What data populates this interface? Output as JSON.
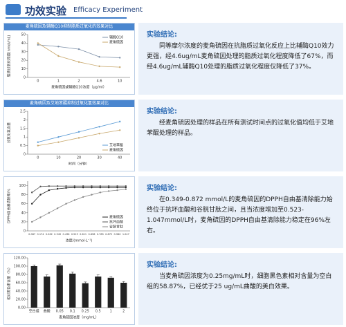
{
  "header": {
    "title": "功效实验",
    "subtitle": "Efficacy Experiment"
  },
  "sections": [
    {
      "heading": "实验结论:",
      "text": "同等摩尔浓度的麦角硫因在抗脂质过氧化反应上比辅酶Q10效力更强，经4.6ug/mL麦角硫因处理的脂质过氧化程度降低了67%，而经4.6ug/mL辅酶Q10处理的脂质过氧化程度仅降低了37%。"
    },
    {
      "heading": "实验结论:",
      "text": "经麦角硫因处理的样品在所有测试时间点的过氧化值均低于艾地苯醌处理的样品。"
    },
    {
      "heading": "实验结论:",
      "text": "在0.349-0.872 mmol/L的麦角硫因的DPPH自由基清除能力始终位于抗坏血酸和谷胱甘肽之间，且当浓度增加至0.523-1.047mmol/L时，麦角硫因的DPPH自由基清除能力稳定在96%左右。"
    },
    {
      "heading": "实验结论:",
      "text": "当麦角硫因浓度为0.25mg/mL时，细胞黑色素相对含量为空白组的58.87%，已经优于25 ug/mL曲酸的美白效果。"
    }
  ],
  "chart_data": [
    {
      "type": "line",
      "title": "麦角硫因及辅酶Q10抑制脂质过氧化的效果对比",
      "x_label": "麦角硫因或辅酶Q10浓度（μg/ml）",
      "y_label": "脂质过氧化程度(nmol/mL)",
      "categories": [
        "0",
        "1",
        "2",
        "4.6",
        "10"
      ],
      "ylim": [
        0,
        50
      ],
      "yticks": [
        0,
        10,
        20,
        30,
        40,
        50
      ],
      "legend": "upper right",
      "series": [
        {
          "name": "辅酶Q10",
          "color": "#7d90a8",
          "values": [
            38,
            36,
            33,
            24,
            23
          ]
        },
        {
          "name": "麦角硫因",
          "color": "#c9a96e",
          "values": [
            40,
            25,
            18,
            13,
            12
          ]
        }
      ]
    },
    {
      "type": "line",
      "title": "麦角硫因及艾地苯醌抑制过氧化氢效果对比",
      "x_label": "时间（分钟）",
      "y_label": "过氧化氢含量",
      "categories": [
        "0",
        "10",
        "20",
        "30",
        "40"
      ],
      "ylim": [
        0,
        2.5
      ],
      "yticks": [
        0,
        0.5,
        1,
        1.5,
        2,
        2.5
      ],
      "legend": "lower right",
      "series": [
        {
          "name": "艾地苯醌",
          "color": "#5b9bd5",
          "values": [
            0.7,
            1.0,
            1.3,
            1.6,
            1.9
          ]
        },
        {
          "name": "麦角硫因",
          "color": "#c9a96e",
          "values": [
            0.5,
            0.7,
            0.95,
            1.2,
            1.4
          ]
        }
      ]
    },
    {
      "type": "line",
      "title": "",
      "x_label": "浓度/(mmol·L⁻¹)",
      "y_label": "DPPH自由基清除率/%",
      "categories": [
        "0.087",
        "0.174",
        "0.262",
        "0.349",
        "0.436",
        "0.523",
        "0.611",
        "0.698",
        "0.785",
        "0.872",
        "0.960",
        "1.047"
      ],
      "ylim": [
        0,
        110
      ],
      "yticks": [
        0,
        20,
        40,
        60,
        80,
        100
      ],
      "legend": "lower right",
      "series": [
        {
          "name": "麦角硫因",
          "color": "#222222",
          "values": [
            60,
            80,
            90,
            93,
            95,
            96,
            96,
            96,
            96,
            96,
            96,
            96
          ]
        },
        {
          "name": "抗坏血酸",
          "color": "#555555",
          "values": [
            85,
            98,
            99,
            99,
            99,
            99,
            99,
            99,
            99,
            99,
            99,
            99
          ]
        },
        {
          "name": "谷胱甘肽",
          "color": "#888888",
          "values": [
            20,
            30,
            40,
            50,
            60,
            68,
            75,
            80,
            85,
            88,
            90,
            92
          ]
        }
      ]
    },
    {
      "type": "bar",
      "title": "",
      "x_label": "麦角硫因浓度（mg/mL）",
      "y_label": "相对黑色素含量（%）",
      "color": "#222222",
      "categories": [
        "空白组",
        "曲酸",
        "0.05",
        "0.1",
        "0.25",
        "0.5",
        "1",
        "2"
      ],
      "values": [
        100,
        75,
        102,
        82,
        58.87,
        75,
        72,
        60
      ],
      "errors": [
        3,
        4,
        3,
        4,
        3,
        4,
        3,
        3
      ],
      "ylim": [
        0,
        120
      ],
      "yticks": [
        {
          "value": 0,
          "label": "0.00"
        },
        {
          "value": 20,
          "label": "20.00"
        },
        {
          "value": 40,
          "label": "40.00"
        },
        {
          "value": 60,
          "label": "60.00"
        },
        {
          "value": 80,
          "label": "80.00"
        },
        {
          "value": 100,
          "label": "100.00"
        },
        {
          "value": 120,
          "label": "120.00"
        }
      ]
    }
  ]
}
